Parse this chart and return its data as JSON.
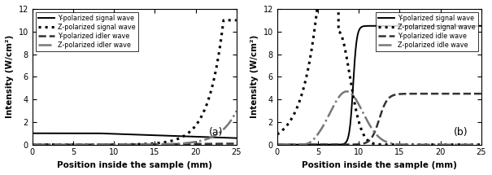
{
  "title_a": "(a)",
  "title_b": "(b)",
  "xlabel": "Position inside the sample (mm)",
  "ylabel": "Intensity (W/cm²)",
  "xlim": [
    0,
    25
  ],
  "ylim": [
    0,
    12
  ],
  "yticks": [
    0,
    2,
    4,
    6,
    8,
    10,
    12
  ],
  "xticks": [
    0,
    5,
    10,
    15,
    20,
    25
  ],
  "legend_a": [
    "Y-polarized signal wave",
    "Z-polarized signal wave",
    "Y-polarized idler wave",
    "Z-polarized idler wave"
  ],
  "legend_b": [
    "Y-polarized signal wave",
    "Z-polarized signal wave",
    "Y-polarized idle wave",
    "Z-polarized idle wave"
  ],
  "line_styles": [
    {
      "color": "#000000",
      "ls": "-",
      "lw": 1.4
    },
    {
      "color": "#000000",
      "ls": ":",
      "lw": 2.2
    },
    {
      "color": "#333333",
      "ls": "--",
      "lw": 1.8
    },
    {
      "color": "#777777",
      "ls": "-.",
      "lw": 1.8
    }
  ],
  "figsize": [
    6.05,
    2.15
  ],
  "dpi": 100
}
